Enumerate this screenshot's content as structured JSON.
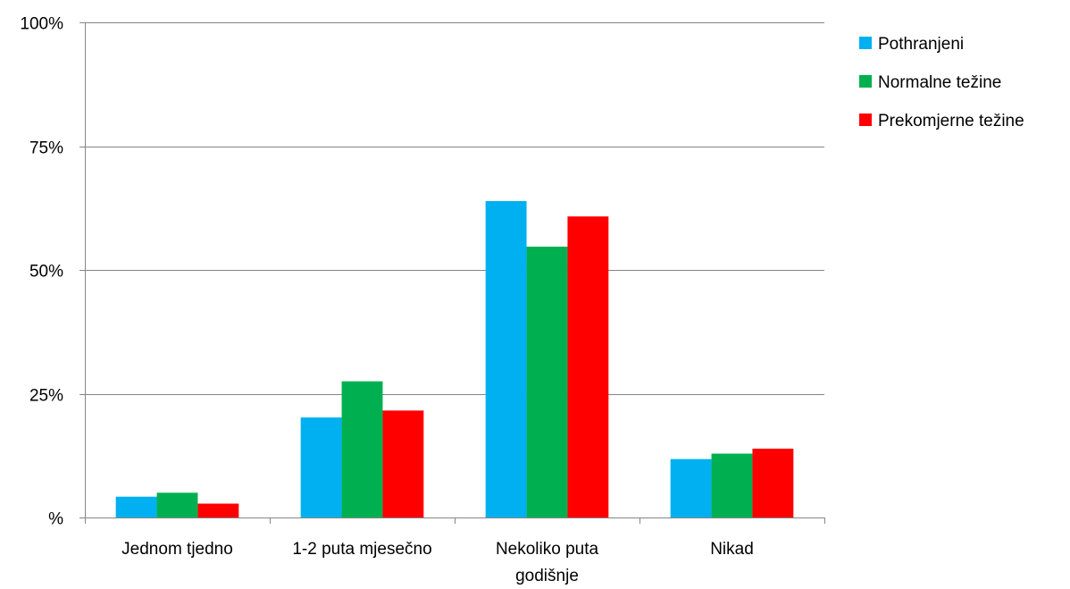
{
  "chart_data": {
    "type": "bar",
    "title": "",
    "xlabel": "",
    "ylabel": "",
    "ylim": [
      0,
      100
    ],
    "yticks": [
      0,
      25,
      50,
      75,
      100
    ],
    "ytick_labels": [
      "%",
      "25%",
      "50%",
      "75%",
      "100%"
    ],
    "grid": true,
    "legend_position": "top-right",
    "categories": [
      [
        "Jednom tjedno"
      ],
      [
        "1-2 puta mjesečno"
      ],
      [
        "Nekoliko puta",
        "godišnje"
      ],
      [
        "Nikad"
      ]
    ],
    "series": [
      {
        "name": "Pothranjeni",
        "color": "#00B0F0",
        "values": [
          4.2,
          20.2,
          63.9,
          11.8
        ]
      },
      {
        "name": "Normalne težine",
        "color": "#00B050",
        "values": [
          5.0,
          27.5,
          54.7,
          12.9
        ]
      },
      {
        "name": "Prekomjerne težine",
        "color": "#FF0000",
        "values": [
          2.8,
          21.6,
          60.8,
          13.9
        ]
      }
    ]
  }
}
